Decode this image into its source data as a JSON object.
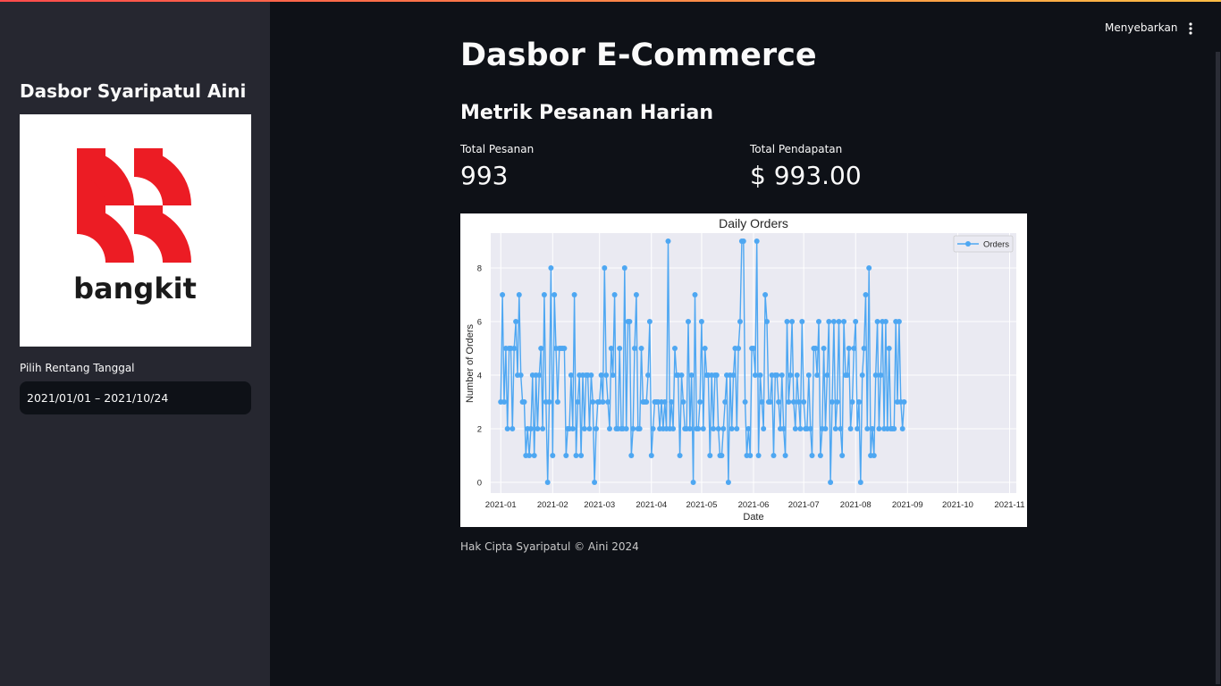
{
  "sidebar": {
    "title": "Dasbor Syaripatul Aini",
    "logo_text": "bangkit",
    "date_label": "Pilih Rentang Tanggal",
    "date_value": "2021/01/01 – 2021/10/24"
  },
  "header": {
    "deploy_label": "Menyebarkan",
    "menu_icon": "kebab-menu-icon"
  },
  "main": {
    "title": "Dasbor E-Commerce",
    "section_title": "Metrik Pesanan Harian",
    "metrics": [
      {
        "label": "Total Pesanan",
        "value": "993"
      },
      {
        "label": "Total Pendapatan",
        "value": "$ 993.00"
      }
    ],
    "footer": "Hak Cipta Syaripatul © Aini 2024"
  },
  "colors": {
    "background": "#0e1117",
    "sidebar": "#262730",
    "line": "#4ea7f2",
    "plot_bg": "#eaeaf2"
  },
  "chart_data": {
    "type": "line",
    "title": "Daily Orders",
    "xlabel": "Date",
    "ylabel": "Number of Orders",
    "legend": [
      "Orders"
    ],
    "legend_position": "top-right",
    "x_start": "2021-01-01",
    "x_ticks": [
      "2021-01",
      "2021-02",
      "2021-03",
      "2021-04",
      "2021-05",
      "2021-06",
      "2021-07",
      "2021-08",
      "2021-09",
      "2021-10",
      "2021-11"
    ],
    "y_ticks": [
      0,
      2,
      4,
      6,
      8
    ],
    "ylim": [
      -0.4,
      9.3
    ],
    "series": [
      {
        "name": "Orders",
        "values": [
          3,
          7,
          3,
          5,
          2,
          5,
          5,
          2,
          5,
          6,
          4,
          7,
          4,
          3,
          3,
          1,
          2,
          1,
          2,
          4,
          1,
          4,
          2,
          4,
          5,
          2,
          7,
          3,
          0,
          3,
          8,
          1,
          7,
          5,
          3,
          5,
          5,
          5,
          5,
          1,
          2,
          2,
          4,
          2,
          7,
          1,
          3,
          4,
          1,
          4,
          2,
          4,
          4,
          2,
          4,
          3,
          0,
          2,
          3,
          3,
          4,
          3,
          8,
          4,
          3,
          2,
          5,
          4,
          7,
          2,
          2,
          5,
          2,
          2,
          8,
          2,
          6,
          6,
          1,
          2,
          5,
          7,
          2,
          2,
          5,
          3,
          3,
          3,
          4,
          6,
          1,
          2,
          3,
          3,
          3,
          2,
          3,
          2,
          3,
          2,
          9,
          2,
          3,
          2,
          5,
          4,
          4,
          1,
          4,
          3,
          2,
          2,
          6,
          2,
          4,
          0,
          7,
          2,
          2,
          3,
          6,
          2,
          5,
          4,
          4,
          1,
          4,
          2,
          4,
          4,
          2,
          1,
          1,
          2,
          3,
          4,
          0,
          4,
          2,
          4,
          5,
          2,
          5,
          6,
          9,
          9,
          3,
          1,
          2,
          1,
          5,
          5,
          4,
          9,
          1,
          4,
          3,
          2,
          7,
          6,
          3,
          3,
          4,
          1,
          4,
          4,
          3,
          2,
          4,
          2,
          1,
          6,
          3,
          4,
          6,
          3,
          2,
          4,
          3,
          2,
          6,
          3,
          2,
          2,
          4,
          2,
          1,
          5,
          5,
          4,
          6,
          1,
          2,
          5,
          2,
          4,
          6,
          0,
          3,
          6,
          2,
          3,
          6,
          2,
          1,
          6,
          4,
          4,
          5,
          2,
          3,
          5,
          6,
          2,
          3,
          0,
          4,
          5,
          7,
          2,
          8,
          1,
          2,
          1,
          4,
          6,
          2,
          4,
          6,
          2,
          6,
          2,
          5,
          2,
          2,
          2,
          6,
          3,
          6,
          3,
          2,
          3
        ]
      }
    ]
  }
}
